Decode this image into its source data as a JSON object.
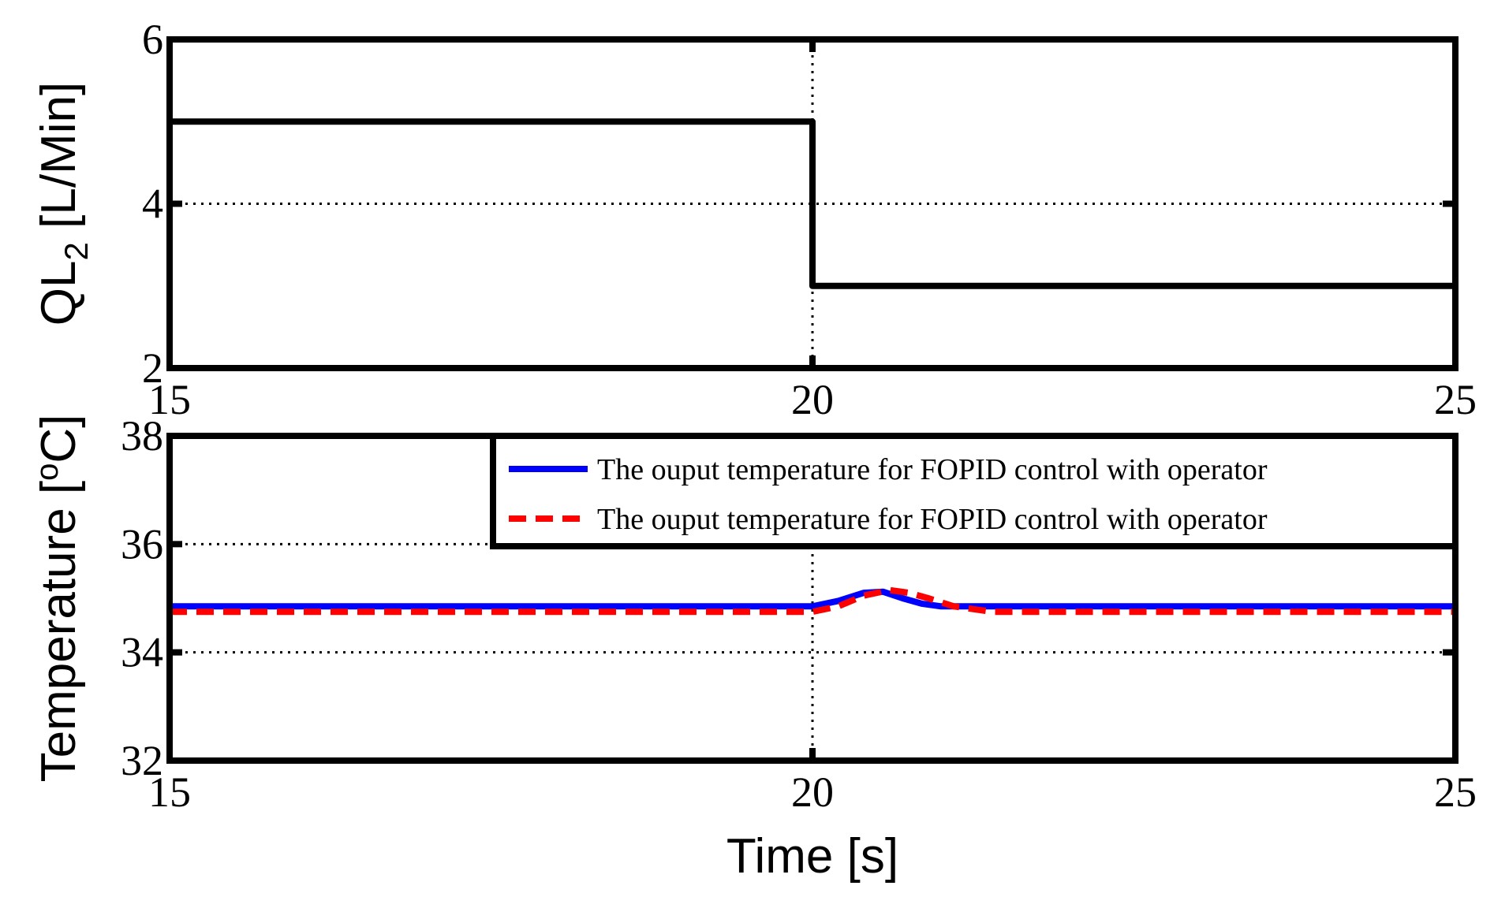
{
  "chart_data": [
    {
      "type": "line",
      "xlabel": "",
      "ylabel": "QL",
      "ylabel_sub": "2",
      "ylabel_unit": " [L/Min]",
      "xlim": [
        15,
        25
      ],
      "ylim": [
        2,
        6
      ],
      "xticks": [
        15,
        20,
        25
      ],
      "yticks": [
        2,
        4,
        6
      ],
      "grid": true,
      "series": [
        {
          "color": "#000000",
          "x": [
            15,
            20,
            20,
            25
          ],
          "y": [
            5,
            5,
            3,
            3
          ]
        }
      ]
    },
    {
      "type": "line",
      "xlabel": "Time [s]",
      "ylabel": "Temperature [",
      "ylabel_sup": "o",
      "ylabel_unit": "C]",
      "xlim": [
        15,
        25
      ],
      "ylim": [
        32,
        38
      ],
      "xticks": [
        15,
        20,
        25
      ],
      "yticks": [
        32,
        34,
        36,
        38
      ],
      "grid": true,
      "legend_position": "top-right",
      "series": [
        {
          "name": "The ouput temperature for FOPID control with operator",
          "color": "#0000ff",
          "style": "solid",
          "x": [
            15,
            20,
            20.2,
            20.4,
            20.55,
            20.7,
            20.85,
            21.0,
            21.3,
            25
          ],
          "y": [
            34.85,
            34.85,
            34.95,
            35.1,
            35.12,
            35.0,
            34.9,
            34.85,
            34.85,
            34.85
          ]
        },
        {
          "name": "The ouput temperature for FOPID control with operator",
          "color": "#ff0000",
          "style": "dashed",
          "x": [
            15,
            20,
            20.2,
            20.4,
            20.6,
            20.75,
            20.9,
            21.1,
            21.4,
            25
          ],
          "y": [
            34.75,
            34.75,
            34.85,
            35.05,
            35.15,
            35.1,
            35.0,
            34.85,
            34.75,
            34.75
          ]
        }
      ]
    }
  ]
}
